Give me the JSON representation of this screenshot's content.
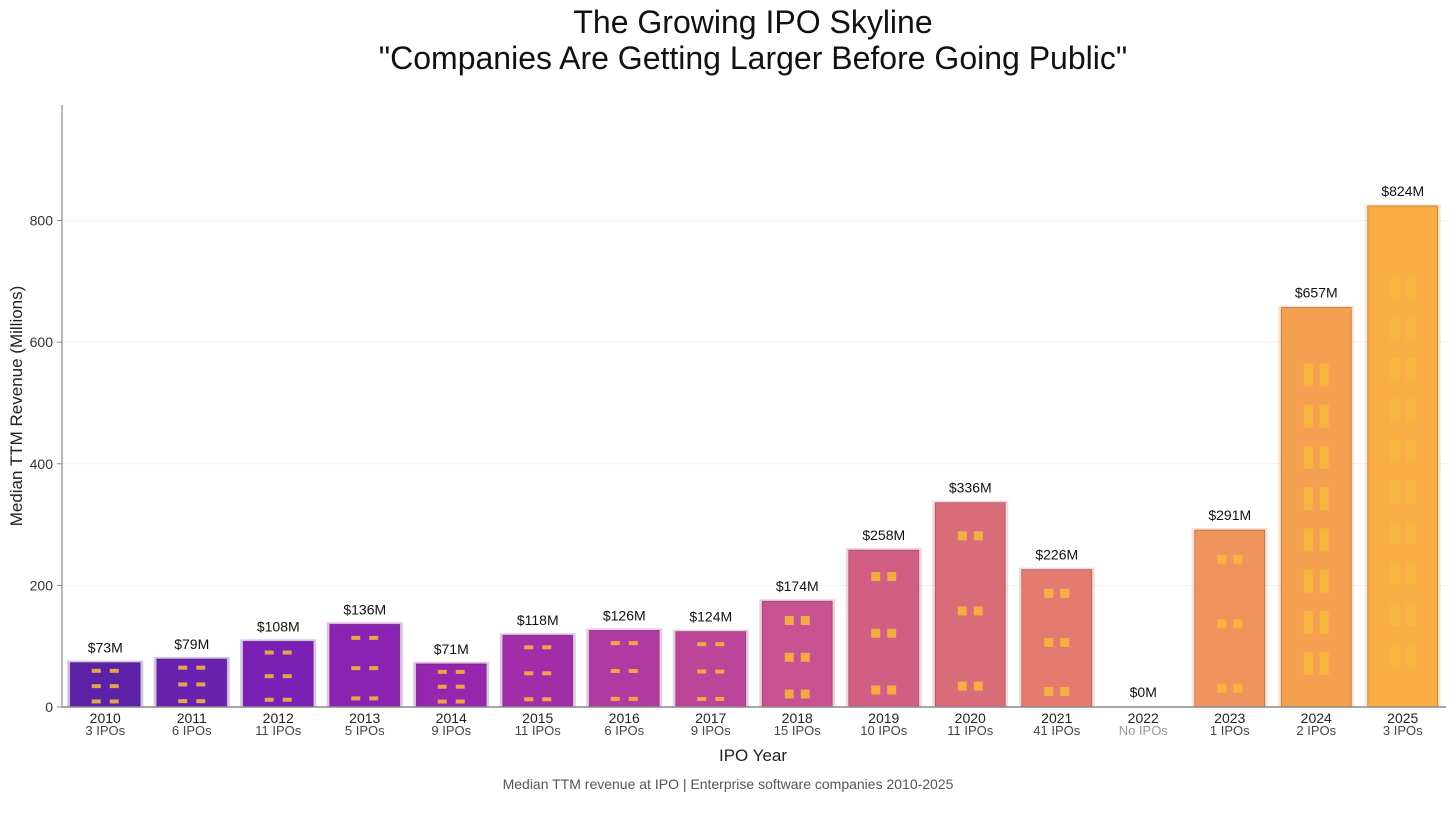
{
  "chart_data": {
    "type": "bar",
    "title": "The Growing IPO Skyline",
    "subtitle": "\"Companies Are Getting Larger Before Going Public\"",
    "xlabel": "IPO Year",
    "ylabel": "Median TTM Revenue (Millions)",
    "caption": "Median TTM revenue at IPO | Enterprise software companies 2010-2025",
    "ylim": [
      0,
      990
    ],
    "yticks": [
      0,
      200,
      400,
      600,
      800
    ],
    "grid": true,
    "categories": [
      "2010",
      "2011",
      "2012",
      "2013",
      "2014",
      "2015",
      "2016",
      "2017",
      "2018",
      "2019",
      "2020",
      "2021",
      "2022",
      "2023",
      "2024",
      "2025"
    ],
    "values": [
      73,
      79,
      108,
      136,
      71,
      118,
      126,
      124,
      174,
      258,
      336,
      226,
      0,
      291,
      657,
      824
    ],
    "value_labels": [
      "$73M",
      "$79M",
      "$108M",
      "$136M",
      "$71M",
      "$118M",
      "$126M",
      "$124M",
      "$174M",
      "$258M",
      "$336M",
      "$226M",
      "$0M",
      "$291M",
      "$657M",
      "$824M"
    ],
    "ipo_counts": [
      "3 IPOs",
      "6 IPOs",
      "11 IPOs",
      "5 IPOs",
      "9 IPOs",
      "11 IPOs",
      "6 IPOs",
      "9 IPOs",
      "15 IPOs",
      "10 IPOs",
      "11 IPOs",
      "41 IPOs",
      "No IPOs",
      "1 IPOs",
      "2 IPOs",
      "3 IPOs"
    ],
    "colors": [
      "#5c21a6",
      "#6b21b0",
      "#7c20b5",
      "#8b22b2",
      "#9526ad",
      "#a12ea8",
      "#b13aa2",
      "#bc459a",
      "#c75191",
      "#d15e83",
      "#da6c7a",
      "#e57a6e",
      "#ec8864",
      "#f0935c",
      "#f5a050",
      "#f8ad45"
    ],
    "window_color": "#f6b73c"
  }
}
